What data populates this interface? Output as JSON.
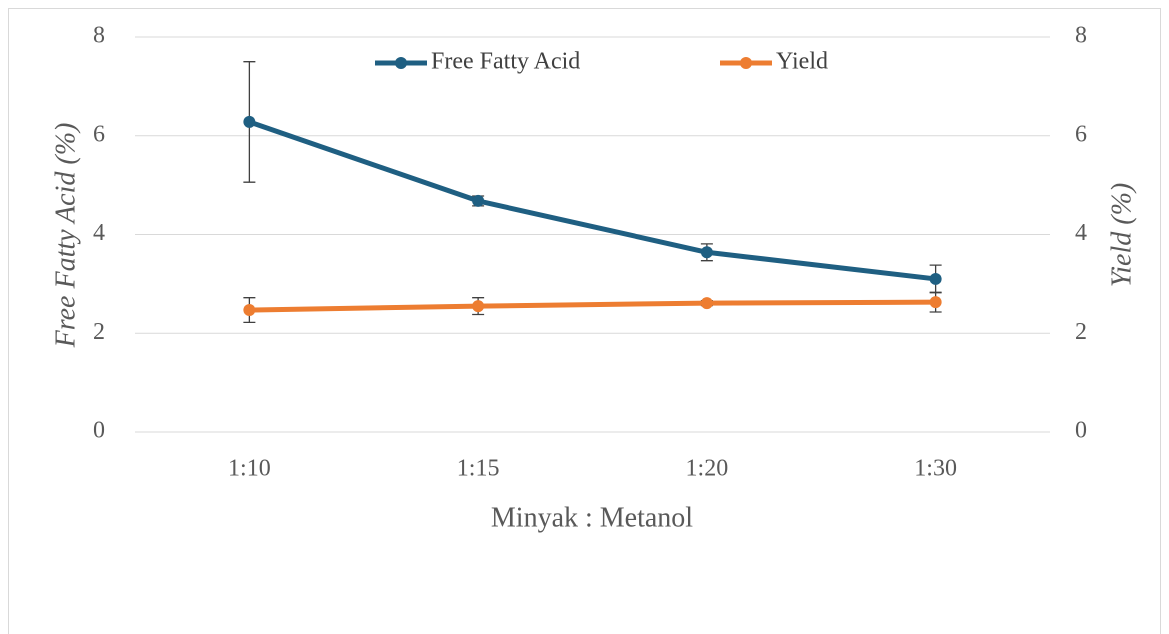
{
  "chart_data": {
    "type": "line",
    "x_label": "Minyak : Metanol",
    "y_label": "Free Fatty Acid (%)",
    "y2_label": "Yield (%)",
    "categories": [
      "1:10",
      "1:15",
      "1:20",
      "1:30"
    ],
    "series": [
      {
        "name": "Free Fatty Acid",
        "color": "#1f5f82",
        "values": [
          6.28,
          4.68,
          3.64,
          3.1
        ],
        "errors": [
          1.22,
          0.1,
          0.17,
          0.28
        ]
      },
      {
        "name": "Yield",
        "color": "#ed7d31",
        "axis": "y2",
        "values": [
          2.47,
          2.55,
          2.61,
          2.63
        ],
        "errors": [
          0.25,
          0.17,
          0.05,
          0.2
        ]
      }
    ],
    "ylim": [
      0,
      8
    ],
    "yticks": [
      0,
      2,
      4,
      6,
      8
    ],
    "y2lim": [
      0,
      8
    ],
    "y2ticks": [
      0,
      2,
      4,
      6,
      8
    ],
    "grid": true,
    "legend": "top"
  }
}
